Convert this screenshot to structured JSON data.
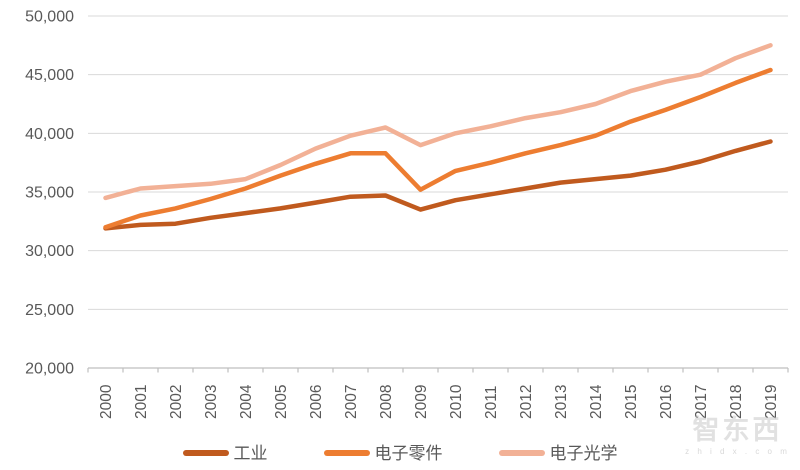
{
  "chart_data": {
    "type": "line",
    "title": "",
    "xlabel": "",
    "ylabel": "",
    "x": [
      "2000",
      "2001",
      "2002",
      "2003",
      "2004",
      "2005",
      "2006",
      "2007",
      "2008",
      "2009",
      "2010",
      "2011",
      "2012",
      "2013",
      "2014",
      "2015",
      "2016",
      "2017",
      "2018",
      "2019"
    ],
    "series": [
      {
        "name": "工业",
        "color": "#C05A1E",
        "values": [
          31900,
          32200,
          32300,
          32800,
          33200,
          33600,
          34100,
          34600,
          34700,
          33500,
          34300,
          34800,
          35300,
          35800,
          36100,
          36400,
          36900,
          37600,
          38500,
          39300
        ]
      },
      {
        "name": "电子零件",
        "color": "#ED7D31",
        "values": [
          32000,
          33000,
          33600,
          34400,
          35300,
          36400,
          37400,
          38300,
          38300,
          35200,
          36800,
          37500,
          38300,
          39000,
          39800,
          41000,
          42000,
          43100,
          44300,
          45400
        ]
      },
      {
        "name": "电子光学",
        "color": "#F2B196",
        "values": [
          34500,
          35300,
          35500,
          35700,
          36100,
          37300,
          38700,
          39800,
          40500,
          39000,
          40000,
          40600,
          41300,
          41800,
          42500,
          43600,
          44400,
          45000,
          46400,
          47500
        ]
      }
    ],
    "ylim": [
      20000,
      50000
    ],
    "ytick_step": 5000,
    "ytick_labels": [
      "20,000",
      "25,000",
      "30,000",
      "35,000",
      "40,000",
      "45,000",
      "50,000"
    ],
    "grid": true,
    "legend_position": "bottom"
  },
  "watermark": {
    "logo_text": "智东西",
    "domain_text": "z h i d x . c o m"
  },
  "colors": {
    "background": "#FFFFFF",
    "gridline": "#D9D9D9",
    "axis_line": "#BFBFBF",
    "axis_label": "#595959"
  }
}
